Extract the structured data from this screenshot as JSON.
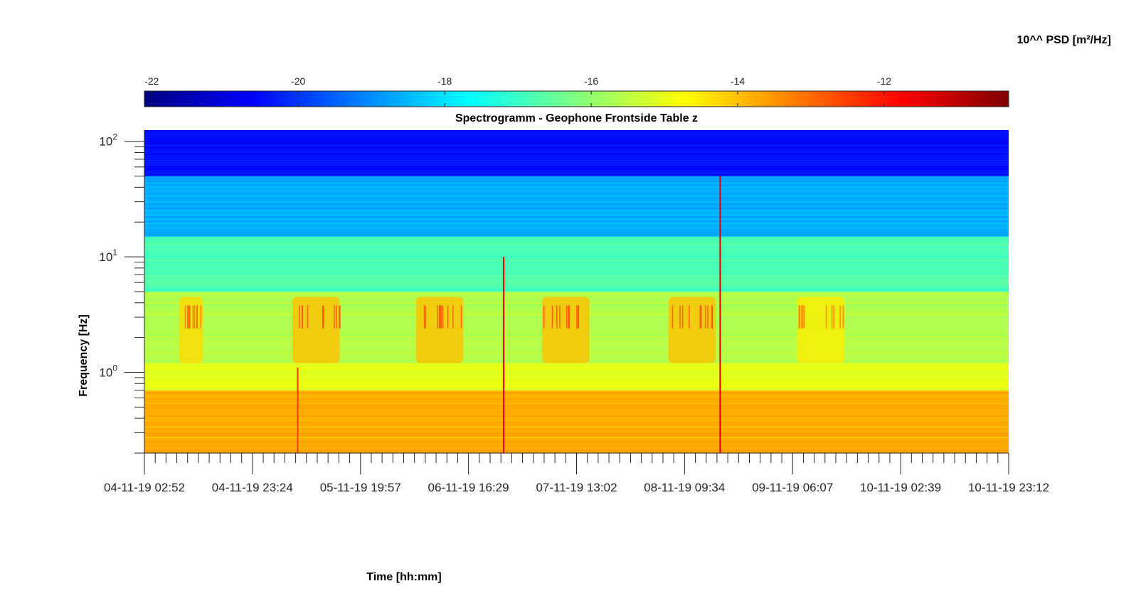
{
  "colorbar": {
    "title": "10^^ PSD [m²/Hz]",
    "ticks": [
      -22,
      -20,
      -18,
      -16,
      -14,
      -12
    ],
    "range": [
      -22.1,
      -10.3
    ],
    "colormap": "jet",
    "placement": "top-horizontal"
  },
  "chart_data": {
    "type": "heatmap",
    "title": "Spectrogramm - Geophone Frontside Table z",
    "xlabel": "Time [hh:mm]",
    "ylabel": "Frequency [Hz]",
    "x_ticks": [
      "04-11-19 02:52",
      "04-11-19 23:24",
      "05-11-19 19:57",
      "06-11-19 16:29",
      "07-11-19 13:02",
      "08-11-19 09:34",
      "09-11-19 06:07",
      "10-11-19 02:39",
      "10-11-19 23:12"
    ],
    "xlim": [
      "04-11-19 02:52",
      "10-11-19 23:12"
    ],
    "y_scale": "log",
    "y_ticks": [
      {
        "base": "10",
        "exp": "0",
        "value": 1
      },
      {
        "base": "10",
        "exp": "1",
        "value": 10
      },
      {
        "base": "10",
        "exp": "2",
        "value": 100
      }
    ],
    "ylim": [
      0.2,
      125
    ],
    "value_unit": "log10 PSD [m²/Hz]",
    "value_range": [
      -22.1,
      -10.3
    ],
    "frequency_bands": [
      {
        "f_min": 0.2,
        "f_max": 0.7,
        "level": -13.8
      },
      {
        "f_min": 0.7,
        "f_max": 1.2,
        "level": -15.0
      },
      {
        "f_min": 1.2,
        "f_max": 5,
        "level": -15.6
      },
      {
        "f_min": 5,
        "f_max": 15,
        "level": -16.8
      },
      {
        "f_min": 15,
        "f_max": 50,
        "level": -18.6
      },
      {
        "f_min": 50,
        "f_max": 125,
        "level": -20.5
      }
    ],
    "daily_activity_bands": [
      {
        "start": "04-11-19 09:30",
        "end": "04-11-19 14:00",
        "f_min": 1.2,
        "f_max": 4.5,
        "level": -14.3
      },
      {
        "start": "05-11-19 07:00",
        "end": "05-11-19 16:00",
        "f_min": 1.2,
        "f_max": 4.5,
        "level": -14.0
      },
      {
        "start": "06-11-19 06:30",
        "end": "06-11-19 15:30",
        "f_min": 1.2,
        "f_max": 4.5,
        "level": -14.0
      },
      {
        "start": "07-11-19 06:30",
        "end": "07-11-19 15:30",
        "f_min": 1.2,
        "f_max": 4.5,
        "level": -14.0
      },
      {
        "start": "08-11-19 06:30",
        "end": "08-11-19 15:30",
        "f_min": 1.2,
        "f_max": 4.5,
        "level": -14.0
      },
      {
        "start": "09-11-19 07:00",
        "end": "09-11-19 16:00",
        "f_min": 1.2,
        "f_max": 4.5,
        "level": -14.5
      }
    ],
    "transient_events": [
      {
        "time": "05-11-19 08:00",
        "f_max": 1.1,
        "level": -12.5
      },
      {
        "time": "06-11-19 23:10",
        "f_max": 10,
        "level": -11.8
      },
      {
        "time": "08-11-19 16:20",
        "f_max": 50,
        "level": -11.5
      }
    ]
  }
}
